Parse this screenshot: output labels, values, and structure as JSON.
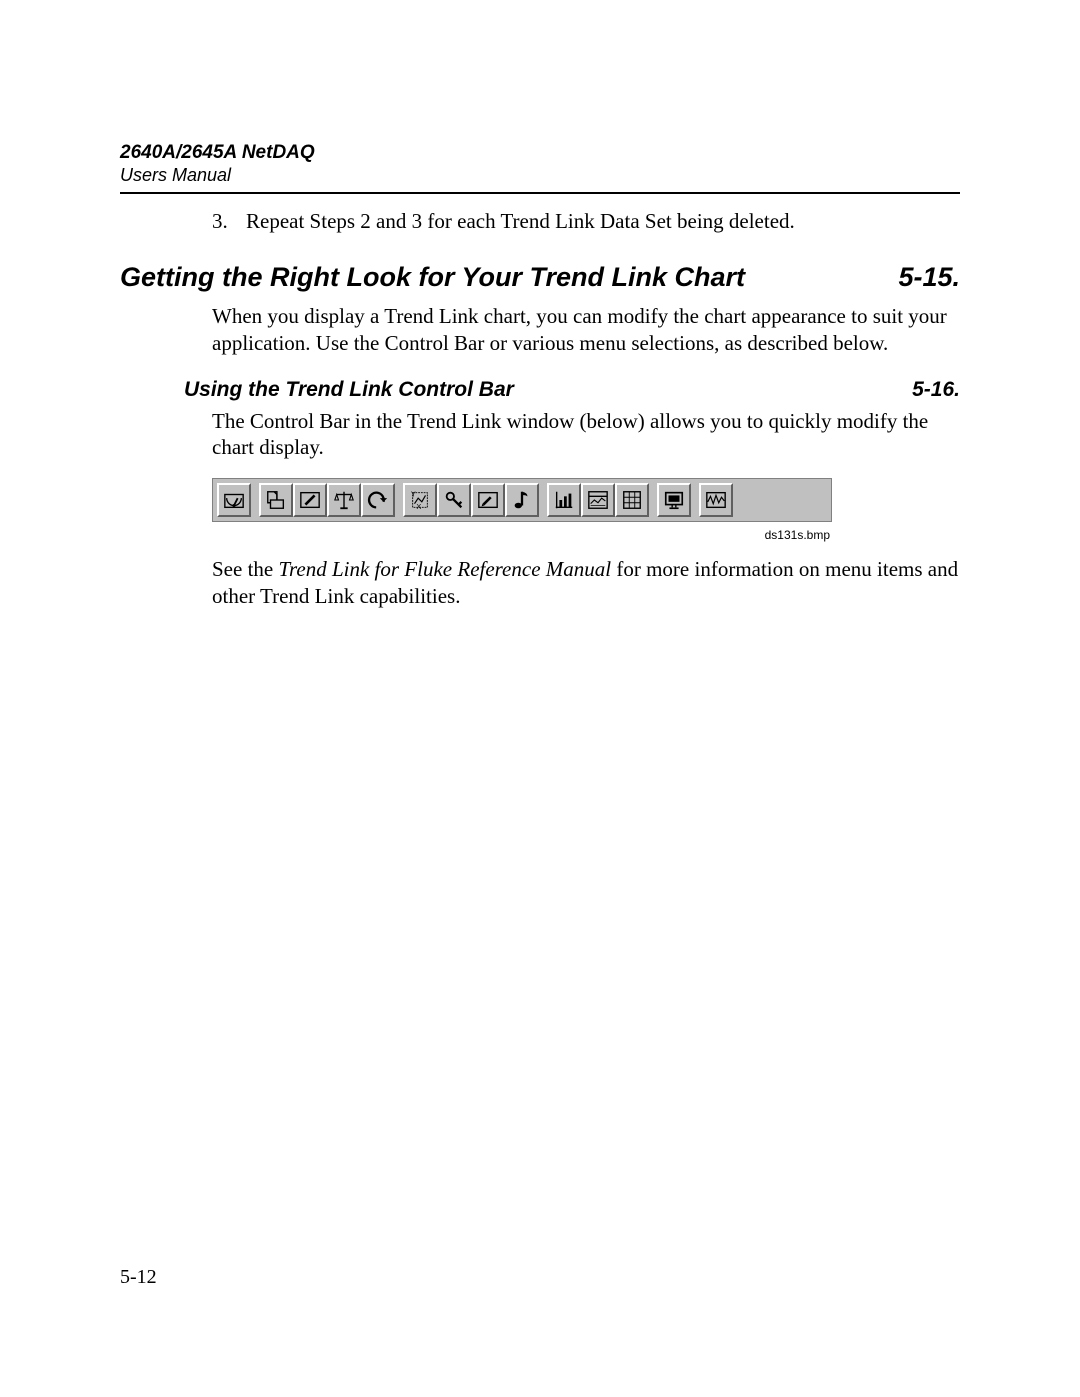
{
  "header": {
    "product": "2640A/2645A NetDAQ",
    "subtitle": "Users Manual"
  },
  "list": {
    "num": "3.",
    "text": "Repeat Steps 2 and 3 for each Trend Link Data Set being deleted."
  },
  "h1": {
    "title": "Getting the Right Look for Your Trend Link Chart",
    "num": "5-15."
  },
  "p1": "When you display a Trend Link chart, you can modify the chart appearance to suit your application. Use the Control Bar or various menu selections, as described below.",
  "h2": {
    "title": "Using the Trend Link Control Bar",
    "num": "5-16."
  },
  "p2": "The Control Bar in the Trend Link window (below) allows you to quickly modify the chart display.",
  "toolbar": {
    "background": "#c0c0c0",
    "bevel_light": "#ffffff",
    "bevel_dark": "#606060",
    "buttons": [
      {
        "name": "gauge-icon",
        "group": 0
      },
      {
        "name": "open-icon",
        "group": 1
      },
      {
        "name": "edit-icon",
        "group": 1
      },
      {
        "name": "balance-icon",
        "group": 1
      },
      {
        "name": "undo-icon",
        "group": 1
      },
      {
        "name": "y-axis-icon",
        "group": 2
      },
      {
        "name": "key-icon",
        "group": 2
      },
      {
        "name": "pencil-icon",
        "group": 2
      },
      {
        "name": "note-icon",
        "group": 2
      },
      {
        "name": "chart-icon",
        "group": 3
      },
      {
        "name": "window-icon",
        "group": 3
      },
      {
        "name": "grid-icon",
        "group": 3
      },
      {
        "name": "monitor-icon",
        "group": 4
      },
      {
        "name": "waveform-icon",
        "group": 5
      }
    ]
  },
  "img_caption": "ds131s.bmp",
  "p3_pre": "See the ",
  "p3_ital": "Trend Link for Fluke Reference Manual",
  "p3_post": " for more information on menu items and other Trend Link capabilities.",
  "page_number": "5-12"
}
